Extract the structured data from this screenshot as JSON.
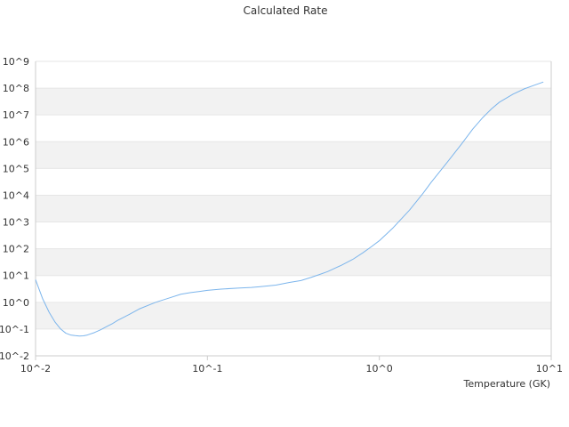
{
  "chart_data": {
    "type": "line",
    "title": "Calculated Rate",
    "xlabel": "Temperature (GK)",
    "ylabel": "",
    "x_scale": "log",
    "y_scale": "log",
    "xlim": [
      0.01,
      10
    ],
    "ylim": [
      0.01,
      1000000000
    ],
    "x_tick_labels": [
      "10^-2",
      "10^-1",
      "10^0",
      "10^1"
    ],
    "y_tick_labels": [
      "10^-2",
      "10^-1",
      "10^0",
      "10^1",
      "10^2",
      "10^3",
      "10^4",
      "10^5",
      "10^6",
      "10^7",
      "10^8",
      "10^9"
    ],
    "grid": true,
    "alternating_bands": true,
    "legend": false,
    "colors": {
      "line": "#7cb5ec",
      "band": "#f2f2f2",
      "gridline": "#e6e6e6",
      "axis": "#cccccc",
      "text": "#333333"
    },
    "series": [
      {
        "x": [
          0.01,
          0.011,
          0.012,
          0.013,
          0.014,
          0.015,
          0.016,
          0.017,
          0.018,
          0.019,
          0.02,
          0.022,
          0.024,
          0.026,
          0.028,
          0.03,
          0.035,
          0.04,
          0.05,
          0.06,
          0.07,
          0.08,
          0.09,
          0.1,
          0.12,
          0.15,
          0.18,
          0.2,
          0.25,
          0.3,
          0.35,
          0.4,
          0.45,
          0.5,
          0.6,
          0.7,
          0.8,
          0.9,
          1.0,
          1.2,
          1.5,
          1.8,
          2.0,
          2.5,
          3.0,
          3.5,
          4.0,
          4.5,
          5.0,
          6.0,
          7.0,
          8.0,
          9.0
        ],
        "y": [
          7,
          1.35,
          0.42,
          0.18,
          0.1,
          0.07,
          0.06,
          0.057,
          0.055,
          0.056,
          0.06,
          0.074,
          0.095,
          0.125,
          0.16,
          0.21,
          0.35,
          0.56,
          1.0,
          1.45,
          2.0,
          2.3,
          2.55,
          2.8,
          3.1,
          3.4,
          3.6,
          3.8,
          4.4,
          5.5,
          6.5,
          8.5,
          11,
          14,
          24,
          40,
          70,
          120,
          200,
          600,
          2800,
          12000,
          30000,
          180000,
          800000,
          3000000,
          8000000,
          17000000,
          30000000,
          60000000,
          95000000,
          130000000,
          170000000
        ]
      }
    ]
  }
}
